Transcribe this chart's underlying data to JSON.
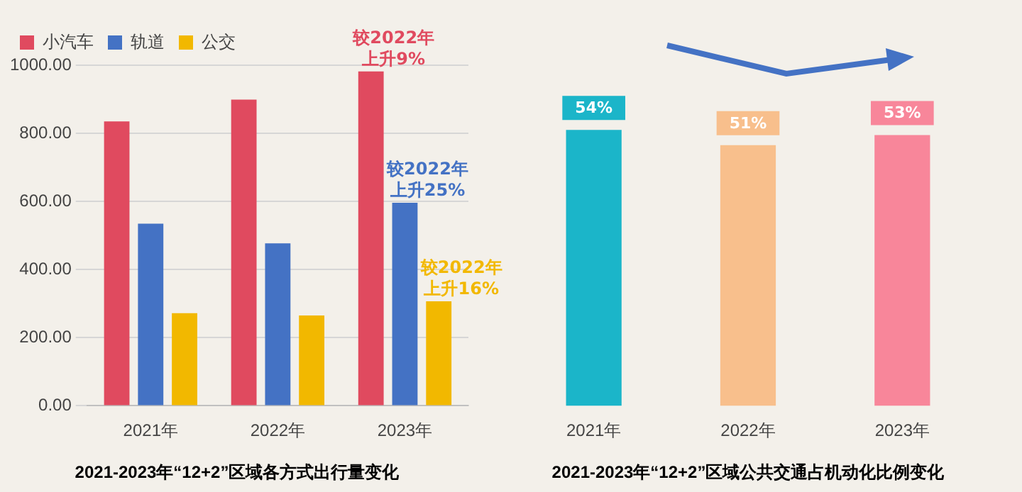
{
  "chart_data": [
    {
      "type": "bar",
      "title": "2021-2023年“12+2”区域各方式出行量变化",
      "categories": [
        "2021年",
        "2022年",
        "2023年"
      ],
      "series": [
        {
          "name": "小汽车",
          "color": "#e04a5f",
          "values": [
            835,
            899,
            982
          ]
        },
        {
          "name": "轨道",
          "color": "#4472c4",
          "values": [
            535,
            477,
            596
          ]
        },
        {
          "name": "公交",
          "color": "#f2b800",
          "values": [
            272,
            265,
            307
          ]
        }
      ],
      "ylim": [
        0,
        1000
      ],
      "yticks": [
        {
          "value": 0,
          "label": "0.00"
        },
        {
          "value": 200,
          "label": "200.00"
        },
        {
          "value": 400,
          "label": "400.00"
        },
        {
          "value": 600,
          "label": "600.00"
        },
        {
          "value": 800,
          "label": "800.00"
        },
        {
          "value": 1000,
          "label": "1000.00"
        }
      ],
      "grid": "y",
      "legend": "top",
      "annotations": [
        "较2022年上升9%",
        "较2022年上升25%",
        "较2022年上升16%"
      ]
    },
    {
      "type": "bar",
      "title": "2021-2023年“12+2”区域公共交通占机动化比例变化",
      "categories": [
        "2021年",
        "2022年",
        "2023年"
      ],
      "values": [
        54,
        51,
        53
      ],
      "colors": [
        "#1bb5c9",
        "#f8bf8c",
        "#f8869a"
      ],
      "value_labels": [
        "54%",
        "51%",
        "53%"
      ],
      "tick_labels": "x"
    }
  ]
}
